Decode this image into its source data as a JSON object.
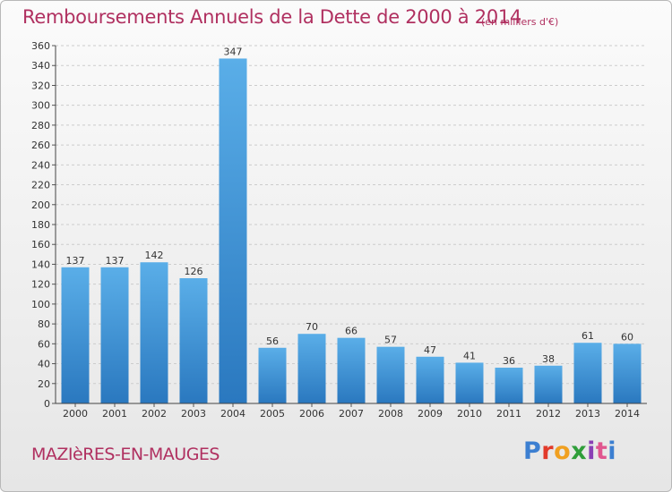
{
  "title": "Remboursements Annuels de la Dette de 2000 à 2014",
  "unit_note": "(en milliers d'€)",
  "town": "MAZIèRES-EN-MAUGES",
  "logo": {
    "text": "Proxiti",
    "letters": [
      "P",
      "r",
      "o",
      "x",
      "i",
      "t",
      "i"
    ]
  },
  "colors": {
    "bar": "#3f8fd6",
    "text": "#b03060",
    "grid": "#cccccc"
  },
  "chart_data": {
    "type": "bar",
    "title": "Remboursements Annuels de la Dette de 2000 à 2014",
    "categories": [
      "2000",
      "2001",
      "2002",
      "2003",
      "2004",
      "2005",
      "2006",
      "2007",
      "2008",
      "2009",
      "2010",
      "2011",
      "2012",
      "2013",
      "2014"
    ],
    "values": [
      137,
      137,
      142,
      126,
      347,
      56,
      70,
      66,
      57,
      47,
      41,
      36,
      38,
      61,
      60
    ],
    "ylim": [
      0,
      360
    ],
    "yticks": [
      0,
      20,
      40,
      60,
      80,
      100,
      120,
      140,
      160,
      180,
      200,
      220,
      240,
      260,
      280,
      300,
      320,
      340,
      360
    ],
    "grid": true,
    "xlabel": "",
    "ylabel": ""
  }
}
